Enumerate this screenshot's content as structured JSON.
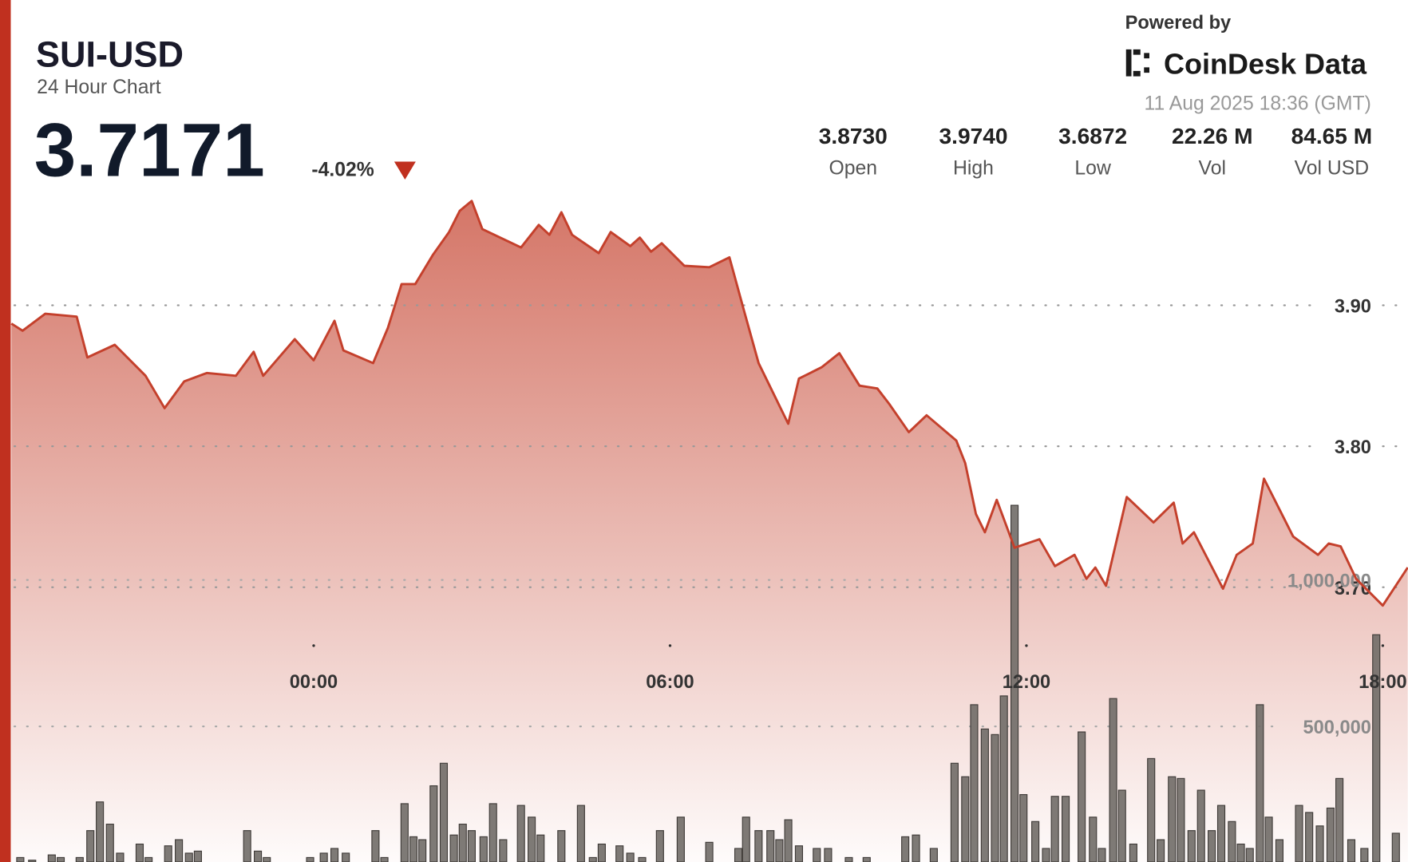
{
  "chart_data": {
    "type": "line",
    "title": "SUI-USD",
    "subtitle": "24 Hour Chart",
    "price": "3.7171",
    "change": "-4.02%",
    "powered_by": "Powered by",
    "brand": "CoinDesk Data",
    "timestamp": "11 Aug 2025 18:36 (GMT)",
    "stats": [
      {
        "value": "3.8730",
        "label": "Open"
      },
      {
        "value": "3.9740",
        "label": "High"
      },
      {
        "value": "3.6872",
        "label": "Low"
      },
      {
        "value": "22.26 M",
        "label": "Vol"
      },
      {
        "value": "84.65 M",
        "label": "Vol USD"
      }
    ],
    "color": "#c4402c",
    "xlim": [
      -5.1,
      18.5
    ],
    "xticks": [
      {
        "value": 0,
        "label": "00:00"
      },
      {
        "value": 6,
        "label": "06:00"
      },
      {
        "value": 12,
        "label": "12:00"
      },
      {
        "value": 18,
        "label": "18:00"
      }
    ],
    "ylim": [
      3.5,
      4.0
    ],
    "yticks": [
      {
        "value": 3.9,
        "label": "3.90"
      },
      {
        "value": 3.8,
        "label": "3.80"
      },
      {
        "value": 3.7,
        "label": "3.70"
      }
    ],
    "grid": true,
    "x": [
      -5.09,
      -4.9,
      -4.52,
      -3.99,
      -3.81,
      -3.35,
      -2.83,
      -2.51,
      -2.18,
      -1.8,
      -1.31,
      -1.01,
      -0.85,
      -0.32,
      0,
      0.35,
      0.5,
      1.0,
      1.25,
      1.48,
      1.71,
      2.01,
      2.28,
      2.46,
      2.66,
      2.84,
      3.49,
      3.79,
      3.97,
      4.17,
      4.35,
      4.8,
      5.0,
      5.33,
      5.49,
      5.68,
      5.86,
      6.24,
      6.66,
      7.0,
      7.24,
      7.49,
      7.99,
      8.17,
      8.55,
      8.85,
      9.19,
      9.49,
      9.69,
      10.02,
      10.32,
      10.82,
      10.97,
      11.15,
      11.3,
      11.5,
      11.8,
      12.22,
      12.48,
      12.81,
      13.01,
      13.16,
      13.34,
      13.69,
      14.14,
      14.48,
      14.63,
      14.82,
      15.31,
      15.54,
      15.81,
      16.0,
      16.49,
      16.91,
      17.09,
      17.29,
      17.55,
      18.0,
      18.42
    ],
    "values": [
      3.887,
      3.882,
      3.894,
      3.892,
      3.863,
      3.872,
      3.85,
      3.827,
      3.846,
      3.852,
      3.85,
      3.867,
      3.85,
      3.876,
      3.861,
      3.889,
      3.868,
      3.859,
      3.884,
      3.915,
      3.915,
      3.936,
      3.952,
      3.967,
      3.974,
      3.954,
      3.941,
      3.957,
      3.95,
      3.966,
      3.95,
      3.937,
      3.952,
      3.942,
      3.948,
      3.938,
      3.944,
      3.928,
      3.927,
      3.934,
      3.897,
      3.859,
      3.816,
      3.848,
      3.856,
      3.866,
      3.843,
      3.841,
      3.83,
      3.81,
      3.822,
      3.804,
      3.788,
      3.752,
      3.739,
      3.762,
      3.728,
      3.734,
      3.715,
      3.723,
      3.706,
      3.714,
      3.701,
      3.764,
      3.746,
      3.76,
      3.731,
      3.739,
      3.699,
      3.723,
      3.731,
      3.777,
      3.736,
      3.723,
      3.731,
      3.729,
      3.706,
      3.687,
      3.714
    ],
    "volume": {
      "color": "#706b67",
      "ylim": [
        0,
        1800000
      ],
      "yticks": [
        {
          "value": 500000,
          "label": "500,000"
        },
        {
          "value": 1000000,
          "label": "1,000,000"
        }
      ],
      "x": [
        -4.94,
        -4.74,
        -4.41,
        -4.26,
        -3.94,
        -3.76,
        -3.6,
        -3.43,
        -3.26,
        -2.93,
        -2.78,
        -2.45,
        -2.27,
        -2.1,
        -1.95,
        -1.12,
        -0.94,
        -0.79,
        -0.06,
        0.17,
        0.35,
        0.54,
        1.04,
        1.19,
        1.53,
        1.68,
        1.83,
        2.02,
        2.19,
        2.36,
        2.51,
        2.66,
        2.86,
        3.02,
        3.19,
        3.49,
        3.67,
        3.82,
        4.17,
        4.5,
        4.7,
        4.85,
        5.15,
        5.33,
        5.53,
        5.83,
        6.18,
        6.66,
        7.15,
        7.28,
        7.49,
        7.69,
        7.84,
        7.99,
        8.17,
        8.47,
        8.66,
        9.01,
        9.31,
        9.96,
        10.14,
        10.44,
        10.79,
        10.97,
        11.12,
        11.3,
        11.47,
        11.62,
        11.8,
        11.95,
        12.15,
        12.33,
        12.48,
        12.66,
        12.93,
        13.12,
        13.27,
        13.46,
        13.61,
        13.8,
        14.1,
        14.26,
        14.45,
        14.6,
        14.78,
        14.94,
        15.12,
        15.28,
        15.46,
        15.61,
        15.76,
        15.93,
        16.08,
        16.26,
        16.59,
        16.76,
        16.94,
        17.12,
        17.27,
        17.47,
        17.69,
        17.89,
        18.22
      ],
      "values": [
        52000,
        43000,
        61000,
        52000,
        52000,
        144000,
        242000,
        166000,
        67000,
        98000,
        52000,
        92000,
        113000,
        67000,
        74000,
        144000,
        74000,
        52000,
        52000,
        67000,
        83000,
        67000,
        144000,
        52000,
        236000,
        123000,
        113000,
        297000,
        374000,
        129000,
        166000,
        144000,
        123000,
        236000,
        113000,
        230000,
        190000,
        129000,
        144000,
        230000,
        52000,
        98000,
        92000,
        67000,
        52000,
        144000,
        190000,
        104000,
        83000,
        190000,
        144000,
        144000,
        113000,
        181000,
        92000,
        83000,
        83000,
        52000,
        52000,
        123000,
        129000,
        83000,
        374000,
        328000,
        574000,
        491000,
        472000,
        604000,
        1255000,
        267000,
        175000,
        83000,
        261000,
        261000,
        481000,
        190000,
        83000,
        595000,
        282000,
        98000,
        390000,
        113000,
        328000,
        322000,
        144000,
        282000,
        144000,
        230000,
        175000,
        98000,
        83000,
        574000,
        190000,
        113000,
        230000,
        206000,
        160000,
        221000,
        322000,
        113000,
        83000,
        813000,
        135000
      ]
    }
  }
}
